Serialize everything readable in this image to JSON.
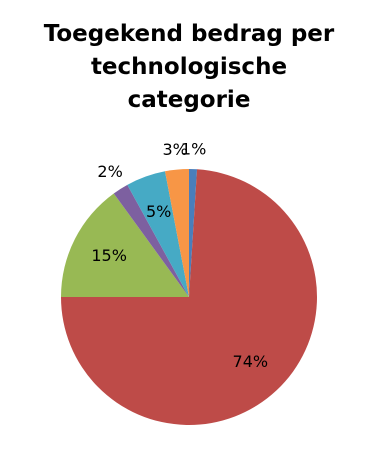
{
  "chart_data": {
    "type": "pie",
    "title": "Toegekend bedrag per technologische categorie",
    "values": [
      1,
      74,
      15,
      2,
      5,
      3
    ],
    "value_labels": [
      "1%",
      "74%",
      "15%",
      "2%",
      "5%",
      "3%"
    ],
    "colors": [
      "#4a7ebb",
      "#be4b48",
      "#98b954",
      "#7d60a0",
      "#46aac5",
      "#f79646"
    ]
  }
}
